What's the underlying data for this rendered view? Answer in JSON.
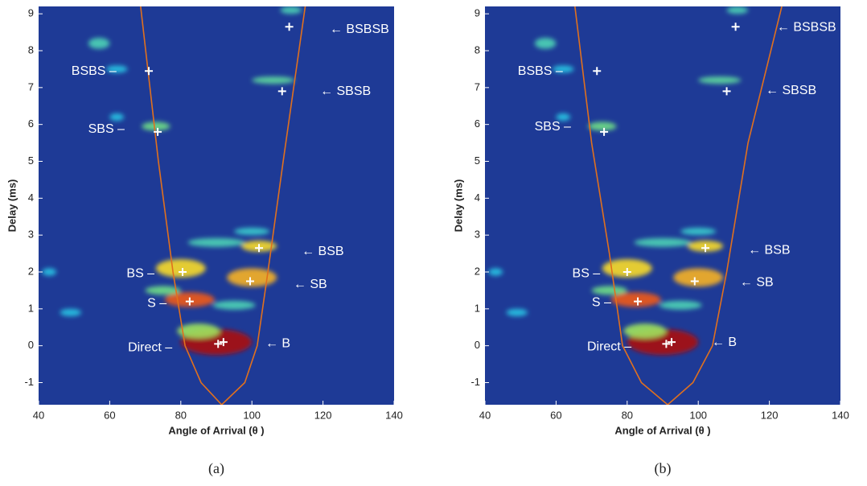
{
  "chart_data": [
    {
      "type": "heatmap",
      "caption": "(a)",
      "x_label": "Angle of Arrival (θ )",
      "y_label": "Delay (ms)",
      "xlim": [
        40,
        140
      ],
      "xticks": [
        40,
        60,
        80,
        100,
        120,
        140
      ],
      "ylim": [
        -1.6,
        9.2
      ],
      "yticks": [
        -1,
        0,
        1,
        2,
        3,
        4,
        5,
        6,
        7,
        8,
        9
      ],
      "background": "#1e3a96",
      "curve_color": "#e0701e",
      "marker_color": "#ffffff",
      "blobs": {
        "x": [
          43,
          49,
          57,
          62,
          62,
          73,
          80,
          82.5,
          75,
          90,
          85,
          100,
          102,
          90,
          100,
          106,
          111,
          95
        ],
        "y": [
          2,
          0.9,
          8.2,
          6.2,
          7.5,
          5.95,
          2.1,
          1.25,
          1.5,
          0.1,
          0.4,
          1.85,
          2.7,
          2.8,
          3.1,
          7.2,
          9.1,
          1.1
        ],
        "dx": [
          2,
          3,
          3,
          2,
          3,
          4,
          7,
          7,
          5,
          10,
          6,
          7,
          5,
          8,
          5,
          6,
          3,
          6
        ],
        "dy": [
          0.1,
          0.1,
          0.15,
          0.1,
          0.1,
          0.12,
          0.25,
          0.2,
          0.12,
          0.35,
          0.2,
          0.25,
          0.15,
          0.12,
          0.1,
          0.1,
          0.1,
          0.12
        ],
        "level": [
          0.3,
          0.3,
          0.4,
          0.3,
          0.3,
          0.5,
          0.75,
          0.9,
          0.5,
          1.0,
          0.6,
          0.8,
          0.75,
          0.4,
          0.35,
          0.45,
          0.4,
          0.4
        ]
      },
      "curve": {
        "x": [
          68.7,
          73.7,
          77.8,
          81.2,
          85.7,
          91.5,
          98,
          101.5,
          104.5,
          108.8,
          115
        ],
        "y": [
          9.2,
          5,
          2,
          0,
          -1,
          -1.6,
          -1,
          0,
          2,
          5,
          9.2
        ]
      },
      "markers": {
        "x": [
          110.5,
          71,
          108.5,
          73.5,
          102,
          80.5,
          99.5,
          82.5,
          90.5,
          92
        ],
        "y": [
          8.65,
          7.45,
          6.9,
          5.8,
          2.65,
          2.0,
          1.75,
          1.2,
          0.05,
          0.1
        ]
      },
      "annotations": [
        {
          "text": "← BSBSB",
          "x": 121.9,
          "y": 8.57,
          "anchor": "start"
        },
        {
          "text": "← SBSB",
          "x": 119.2,
          "y": 6.89,
          "anchor": "start"
        },
        {
          "text": "← BSB",
          "x": 114,
          "y": 2.55,
          "anchor": "start"
        },
        {
          "text": "← SB",
          "x": 111.7,
          "y": 1.66,
          "anchor": "start"
        },
        {
          "text": "← B",
          "x": 103.8,
          "y": 0.05,
          "anchor": "start"
        },
        {
          "text": "BSBS –",
          "x": 61.9,
          "y": 7.44,
          "anchor": "end"
        },
        {
          "text": "SBS –",
          "x": 64.2,
          "y": 5.87,
          "anchor": "end"
        },
        {
          "text": "BS –",
          "x": 72.6,
          "y": 1.95,
          "anchor": "end"
        },
        {
          "text": "S –",
          "x": 76,
          "y": 1.14,
          "anchor": "end"
        },
        {
          "text": "Direct –",
          "x": 77.6,
          "y": -0.06,
          "anchor": "end"
        }
      ]
    },
    {
      "type": "heatmap",
      "caption": "(b)",
      "x_label": "Angle of Arrival (θ )",
      "y_label": "Delay (ms)",
      "xlim": [
        40,
        140
      ],
      "xticks": [
        40,
        60,
        80,
        100,
        120,
        140
      ],
      "ylim": [
        -1.6,
        9.2
      ],
      "yticks": [
        -1,
        0,
        1,
        2,
        3,
        4,
        5,
        6,
        7,
        8,
        9
      ],
      "background": "#1e3a96",
      "curve_color": "#e0701e",
      "marker_color": "#ffffff",
      "blobs": {
        "x": [
          43,
          49,
          57,
          62,
          62,
          73,
          80,
          82.5,
          75,
          90,
          85,
          100,
          102,
          90,
          100,
          106,
          111,
          95
        ],
        "y": [
          2,
          0.9,
          8.2,
          6.2,
          7.5,
          5.95,
          2.1,
          1.25,
          1.5,
          0.1,
          0.4,
          1.85,
          2.7,
          2.8,
          3.1,
          7.2,
          9.1,
          1.1
        ],
        "dx": [
          2,
          3,
          3,
          2,
          3,
          4,
          7,
          7,
          5,
          10,
          6,
          7,
          5,
          8,
          5,
          6,
          3,
          6
        ],
        "dy": [
          0.1,
          0.1,
          0.15,
          0.1,
          0.1,
          0.12,
          0.25,
          0.2,
          0.12,
          0.35,
          0.2,
          0.25,
          0.15,
          0.12,
          0.1,
          0.1,
          0.1,
          0.12
        ],
        "level": [
          0.3,
          0.3,
          0.4,
          0.3,
          0.3,
          0.5,
          0.75,
          0.9,
          0.5,
          1.0,
          0.6,
          0.8,
          0.75,
          0.4,
          0.35,
          0.45,
          0.4,
          0.4
        ]
      },
      "curve": {
        "x": [
          65.3,
          70,
          75,
          78.7,
          84,
          91.4,
          98.5,
          104,
          108,
          114,
          123.5
        ],
        "y": [
          9.2,
          5.5,
          2.5,
          0,
          -1,
          -1.6,
          -1,
          0,
          2,
          5.5,
          9.2
        ]
      },
      "markers": {
        "x": [
          110.5,
          71.5,
          108,
          73.5,
          102,
          80,
          99,
          83,
          91,
          92.5
        ],
        "y": [
          8.65,
          7.45,
          6.9,
          5.8,
          2.65,
          2.0,
          1.75,
          1.2,
          0.05,
          0.1
        ]
      },
      "annotations": [
        {
          "text": "← BSBSB",
          "x": 122.1,
          "y": 8.63,
          "anchor": "start"
        },
        {
          "text": "← SBSB",
          "x": 118.96,
          "y": 6.91,
          "anchor": "start"
        },
        {
          "text": "← BSB",
          "x": 114,
          "y": 2.58,
          "anchor": "start"
        },
        {
          "text": "← SB",
          "x": 111.7,
          "y": 1.71,
          "anchor": "start"
        },
        {
          "text": "← B",
          "x": 103.8,
          "y": 0.09,
          "anchor": "start"
        },
        {
          "text": "BSBS –",
          "x": 61.9,
          "y": 7.44,
          "anchor": "end"
        },
        {
          "text": "SBS –",
          "x": 64.2,
          "y": 5.93,
          "anchor": "end"
        },
        {
          "text": "BS –",
          "x": 72.4,
          "y": 1.95,
          "anchor": "end"
        },
        {
          "text": "S –",
          "x": 75.5,
          "y": 1.16,
          "anchor": "end"
        },
        {
          "text": "Direct –",
          "x": 81.2,
          "y": -0.04,
          "anchor": "end"
        }
      ]
    }
  ]
}
